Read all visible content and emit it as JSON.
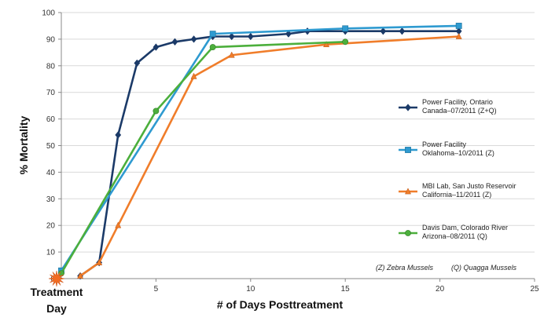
{
  "chart_data": {
    "type": "line",
    "xlabel": "# of Days Posttreatment",
    "ylabel": "% Mortality",
    "xlim": [
      0,
      25
    ],
    "ylim": [
      0,
      100
    ],
    "x_ticks": [
      5,
      10,
      15,
      20,
      25
    ],
    "y_ticks": [
      0,
      10,
      20,
      30,
      40,
      50,
      60,
      70,
      80,
      90,
      100
    ],
    "grid": "horizontal",
    "legend_position": "right",
    "treatment_marker": {
      "x": 0,
      "y": 0,
      "label_line1": "Treatment",
      "label_line2": "Day",
      "color": "#F26B21"
    },
    "series": [
      {
        "name_line1": "Power Facility, Ontario",
        "name_line2": "Canada–07/2011 (Z+Q)",
        "color": "#1B3A68",
        "marker": "diamond",
        "x": [
          1,
          2,
          3,
          4,
          5,
          6,
          7,
          8,
          9,
          10,
          12,
          13,
          15,
          17,
          18,
          21
        ],
        "y": [
          1,
          6,
          54,
          81,
          87,
          89,
          90,
          91,
          91,
          91,
          92,
          93,
          93,
          93,
          93,
          93
        ]
      },
      {
        "name_line1": "Power Facility",
        "name_line2": "Oklahoma–10/2011 (Z)",
        "color": "#2E9AD0",
        "marker": "square",
        "x": [
          0,
          8,
          15,
          21
        ],
        "y": [
          3,
          92,
          94,
          95
        ]
      },
      {
        "name_line1": "MBI Lab, San Justo Reservoir",
        "name_line2": "California–11/2011 (Z)",
        "color": "#F07D2A",
        "marker": "triangle",
        "x": [
          1,
          2,
          3,
          7,
          9,
          14,
          21
        ],
        "y": [
          1,
          6,
          20,
          76,
          84,
          88,
          91
        ]
      },
      {
        "name_line1": "Davis Dam, Colorado River",
        "name_line2": "Arizona–08/2011 (Q)",
        "color": "#4CAF3C",
        "marker": "circle",
        "x": [
          0,
          5,
          8,
          15
        ],
        "y": [
          2,
          63,
          87,
          89
        ]
      }
    ],
    "annotations": [
      "(Z) Zebra Mussels",
      "(Q) Quagga Mussels"
    ]
  }
}
